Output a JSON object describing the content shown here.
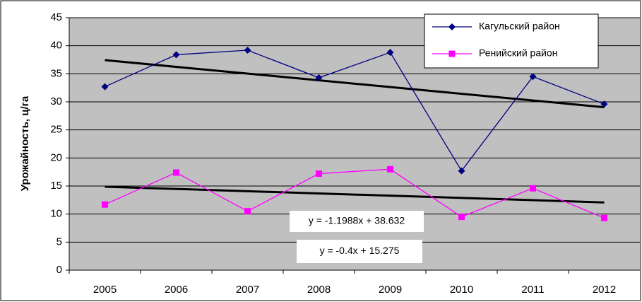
{
  "chart_data": {
    "type": "line",
    "y_label": "Урожайность, ц/га",
    "categories": [
      "2005",
      "2006",
      "2007",
      "2008",
      "2009",
      "2010",
      "2011",
      "2012"
    ],
    "series": [
      {
        "name": "Кагульский район",
        "color": "#000080",
        "marker": "diamond",
        "values": [
          32.7,
          38.4,
          39.2,
          34.3,
          38.8,
          17.7,
          34.5,
          29.6
        ]
      },
      {
        "name": "Ренийский район",
        "color": "#ff00ff",
        "marker": "square",
        "values": [
          11.7,
          17.4,
          10.5,
          17.2,
          18.0,
          9.5,
          14.6,
          9.3
        ]
      }
    ],
    "trendlines": [
      {
        "label": "y = -1.1988x + 38.632",
        "slope": -1.1988,
        "intercept": 38.632
      },
      {
        "label": "y = -0.4x + 15.275",
        "slope": -0.4,
        "intercept": 15.275
      }
    ],
    "trend_color": "#000000",
    "ylim": [
      0,
      45
    ],
    "yticks": [
      0,
      5,
      10,
      15,
      20,
      25,
      30,
      35,
      40,
      45
    ],
    "grid": true,
    "legend": "upper right"
  }
}
